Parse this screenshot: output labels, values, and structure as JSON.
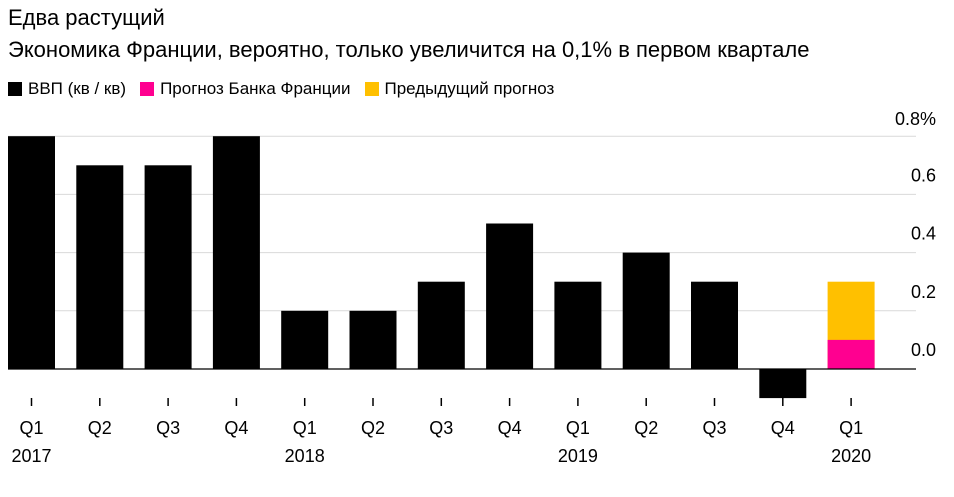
{
  "chart_data": {
    "type": "bar",
    "title": "Едва растущий",
    "subtitle": "Экономика Франции, вероятно, только увеличится на 0,1% в первом квартале",
    "legend": [
      {
        "name": "ВВП (кв / кв)",
        "color": "#000000"
      },
      {
        "name": "Прогноз Банка Франции",
        "color": "#ff0090"
      },
      {
        "name": "Предыдущий прогноз",
        "color": "#ffc000"
      }
    ],
    "categories": [
      "Q1",
      "Q2",
      "Q3",
      "Q4",
      "Q1",
      "Q2",
      "Q3",
      "Q4",
      "Q1",
      "Q2",
      "Q3",
      "Q4",
      "Q1"
    ],
    "year_labels": [
      "2017",
      "",
      "",
      "",
      "2018",
      "",
      "",
      "",
      "2019",
      "",
      "",
      "",
      "2020"
    ],
    "series": [
      {
        "name": "ВВП (кв / кв)",
        "color": "#000000",
        "values": [
          0.8,
          0.7,
          0.7,
          0.8,
          0.2,
          0.2,
          0.3,
          0.5,
          0.3,
          0.4,
          0.3,
          -0.1,
          null
        ]
      },
      {
        "name": "Прогноз Банка Франции",
        "color": "#ff0090",
        "values": [
          null,
          null,
          null,
          null,
          null,
          null,
          null,
          null,
          null,
          null,
          null,
          null,
          0.1
        ]
      },
      {
        "name": "Предыдущий прогноз",
        "color": "#ffc000",
        "values": [
          null,
          null,
          null,
          null,
          null,
          null,
          null,
          null,
          null,
          null,
          null,
          null,
          0.3
        ]
      }
    ],
    "ylim": [
      -0.1,
      0.8
    ],
    "yticks": [
      {
        "value": 0.8,
        "label": "0.8%"
      },
      {
        "value": 0.6,
        "label": "0.6"
      },
      {
        "value": 0.4,
        "label": "0.4"
      },
      {
        "value": 0.2,
        "label": "0.2"
      },
      {
        "value": 0.0,
        "label": "0.0"
      }
    ],
    "y_axis_position": "right",
    "grid": true
  }
}
